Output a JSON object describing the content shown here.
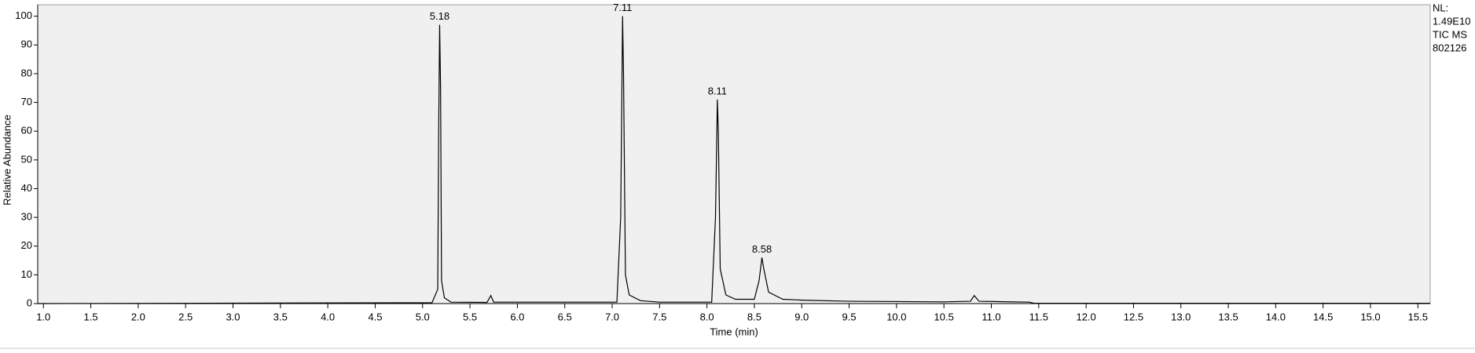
{
  "chart_data": {
    "type": "line",
    "x_label": "Time (min)",
    "y_label": "Relative Abundance",
    "info": [
      "NL:",
      "1.49E10",
      "TIC  MS",
      "802126"
    ],
    "color": "#000000",
    "x": [
      0.94,
      5.1,
      5.16,
      5.17,
      5.18,
      5.19,
      5.2,
      5.23,
      5.3,
      5.68,
      5.72,
      5.75,
      7.05,
      7.09,
      7.11,
      7.12,
      7.14,
      7.18,
      7.3,
      7.5,
      8.05,
      8.09,
      8.11,
      8.12,
      8.14,
      8.2,
      8.3,
      8.5,
      8.55,
      8.58,
      8.6,
      8.65,
      8.8,
      9.0,
      9.5,
      10.5,
      10.78,
      10.82,
      10.87,
      11.4,
      11.45,
      15.63
    ],
    "values": [
      0,
      0.3,
      5,
      60,
      97,
      75,
      8,
      2,
      0.5,
      0.4,
      2.8,
      0.5,
      0.5,
      30,
      100,
      80,
      10,
      3,
      1,
      0.5,
      0.5,
      30,
      71,
      60,
      12,
      3,
      1.5,
      1.5,
      8,
      16,
      12,
      4,
      1.5,
      1.2,
      0.8,
      0.6,
      0.8,
      2.8,
      0.8,
      0.5,
      0.1,
      0.1
    ],
    "peaks": [
      {
        "x": 5.18,
        "y": 97
      },
      {
        "x": 7.11,
        "y": 100
      },
      {
        "x": 8.11,
        "y": 71
      },
      {
        "x": 8.58,
        "y": 16
      }
    ],
    "xlim": [
      0.94,
      15.63
    ],
    "ylim": [
      0,
      104
    ],
    "xticks": [
      {
        "value": 1,
        "label": "1.0"
      },
      {
        "value": 1.5,
        "label": "1.5"
      },
      {
        "value": 2,
        "label": "2.0"
      },
      {
        "value": 2.5,
        "label": "2.5"
      },
      {
        "value": 3,
        "label": "3.0"
      },
      {
        "value": 3.5,
        "label": "3.5"
      },
      {
        "value": 4,
        "label": "4.0"
      },
      {
        "value": 4.5,
        "label": "4.5"
      },
      {
        "value": 5,
        "label": "5.0"
      },
      {
        "value": 5.5,
        "label": "5.5"
      },
      {
        "value": 6,
        "label": "6.0"
      },
      {
        "value": 6.5,
        "label": "6.5"
      },
      {
        "value": 7,
        "label": "7.0"
      },
      {
        "value": 7.5,
        "label": "7.5"
      },
      {
        "value": 8,
        "label": "8.0"
      },
      {
        "value": 8.5,
        "label": "8.5"
      },
      {
        "value": 9,
        "label": "9.0"
      },
      {
        "value": 9.5,
        "label": "9.5"
      },
      {
        "value": 10,
        "label": "10.0"
      },
      {
        "value": 10.5,
        "label": "10.5"
      },
      {
        "value": 11,
        "label": "11.0"
      },
      {
        "value": 11.5,
        "label": "11.5"
      },
      {
        "value": 12,
        "label": "12.0"
      },
      {
        "value": 12.5,
        "label": "12.5"
      },
      {
        "value": 13,
        "label": "13.0"
      },
      {
        "value": 13.5,
        "label": "13.5"
      },
      {
        "value": 14,
        "label": "14.0"
      },
      {
        "value": 14.5,
        "label": "14.5"
      },
      {
        "value": 15,
        "label": "15.0"
      },
      {
        "value": 15.5,
        "label": "15.5"
      }
    ],
    "yticks": [
      0,
      10,
      20,
      30,
      40,
      50,
      60,
      70,
      80,
      90,
      100
    ]
  }
}
